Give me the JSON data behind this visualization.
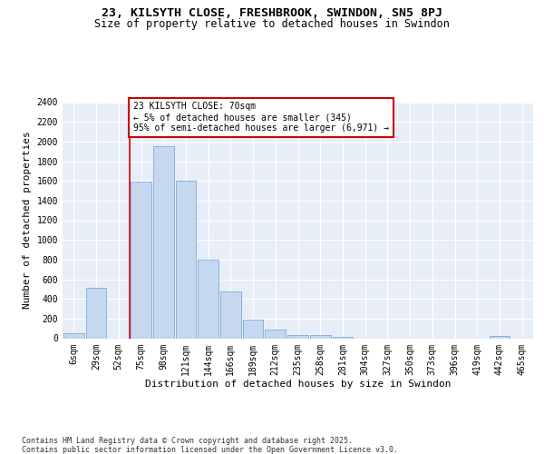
{
  "title_line1": "23, KILSYTH CLOSE, FRESHBROOK, SWINDON, SN5 8PJ",
  "title_line2": "Size of property relative to detached houses in Swindon",
  "xlabel": "Distribution of detached houses by size in Swindon",
  "ylabel": "Number of detached properties",
  "bar_color": "#c5d8f0",
  "bar_edge_color": "#7aacdc",
  "background_color": "#e8eef8",
  "grid_color": "#ffffff",
  "categories": [
    "6sqm",
    "29sqm",
    "52sqm",
    "75sqm",
    "98sqm",
    "121sqm",
    "144sqm",
    "166sqm",
    "189sqm",
    "212sqm",
    "235sqm",
    "258sqm",
    "281sqm",
    "304sqm",
    "327sqm",
    "350sqm",
    "373sqm",
    "396sqm",
    "419sqm",
    "442sqm",
    "465sqm"
  ],
  "values": [
    55,
    510,
    0,
    1590,
    1950,
    1600,
    800,
    480,
    190,
    90,
    35,
    30,
    12,
    0,
    0,
    0,
    0,
    0,
    0,
    20,
    0
  ],
  "ylim": [
    0,
    2400
  ],
  "yticks": [
    0,
    200,
    400,
    600,
    800,
    1000,
    1200,
    1400,
    1600,
    1800,
    2000,
    2200,
    2400
  ],
  "vline_position": 3,
  "annotation_text": "23 KILSYTH CLOSE: 70sqm\n← 5% of detached houses are smaller (345)\n95% of semi-detached houses are larger (6,971) →",
  "annotation_box_color": "#ffffff",
  "annotation_box_edge": "#cc0000",
  "vline_color": "#cc0000",
  "footer_line1": "Contains HM Land Registry data © Crown copyright and database right 2025.",
  "footer_line2": "Contains public sector information licensed under the Open Government Licence v3.0.",
  "title_fontsize": 9.5,
  "subtitle_fontsize": 8.5,
  "axis_label_fontsize": 8,
  "tick_fontsize": 7,
  "annotation_fontsize": 7,
  "footer_fontsize": 6
}
